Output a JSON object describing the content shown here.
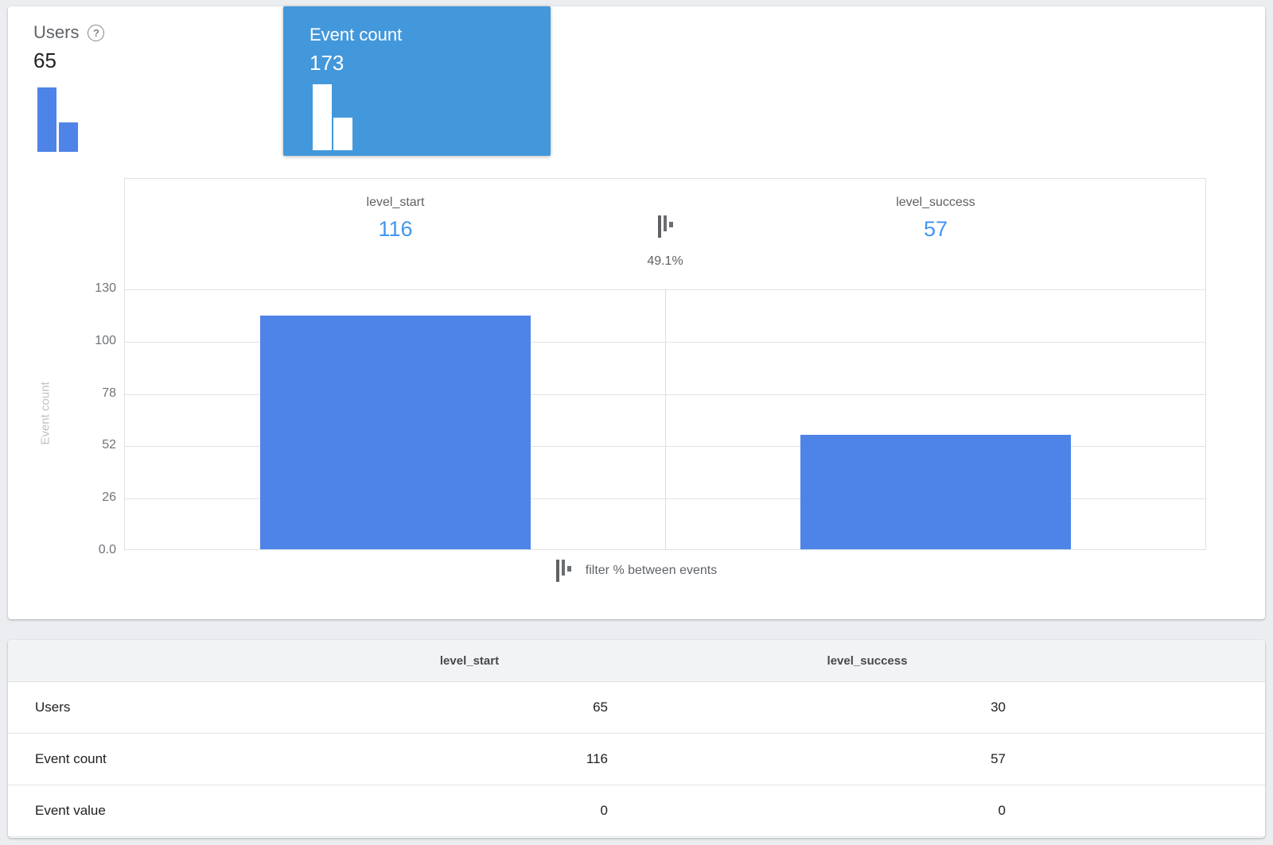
{
  "metric_cards": {
    "users": {
      "label": "Users",
      "value": "65",
      "help_glyph": "?"
    },
    "event_count": {
      "label": "Event count",
      "value": "173",
      "selected": true
    }
  },
  "funnel": {
    "left_event": "level_start",
    "left_value": "116",
    "right_event": "level_success",
    "right_value": "57",
    "between_percent": "49.1%",
    "legend": "filter % between events"
  },
  "y_axis": {
    "title": "Event count",
    "ticks_top_to_bottom": [
      "130",
      "100",
      "78",
      "52",
      "26",
      "0.0"
    ]
  },
  "chart_data": {
    "type": "bar",
    "categories": [
      "level_start",
      "level_success"
    ],
    "series": [
      {
        "name": "Users",
        "values": [
          65,
          30
        ]
      },
      {
        "name": "Event count",
        "values": [
          116,
          57
        ]
      }
    ],
    "displayed_series": "Event count",
    "ylabel": "Event count",
    "ylim": [
      0,
      130
    ],
    "ytick_labels": [
      "0.0",
      "26",
      "52",
      "78",
      "100",
      "130"
    ],
    "grid": true,
    "annotations": {
      "between_events_percent": "49.1%"
    },
    "bar_color": "#4E84E8"
  },
  "table": {
    "columns": [
      "level_start",
      "level_success"
    ],
    "rows": [
      {
        "label": "Users",
        "values": [
          "65",
          "30"
        ]
      },
      {
        "label": "Event count",
        "values": [
          "116",
          "57"
        ]
      },
      {
        "label": "Event value",
        "values": [
          "0",
          "0"
        ]
      }
    ]
  },
  "colors": {
    "selected_card_blue": "#4398DB",
    "bar_blue": "#4E84E8",
    "value_text_blue": "#4295F2",
    "page_background": "#EBEDF0"
  }
}
